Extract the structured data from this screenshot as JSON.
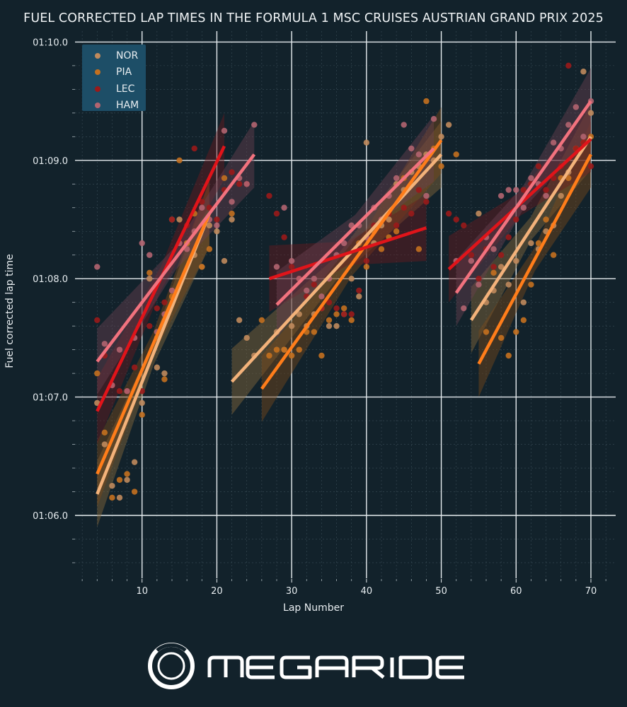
{
  "chart_data": {
    "type": "scatter",
    "title": "FUEL CORRECTED LAP TIMES IN THE FORMULA 1 MSC CRUISES AUSTRIAN GRAND PRIX 2025",
    "xlabel": "Lap Number",
    "ylabel": "Fuel corrected lap time",
    "xlim": [
      1.5,
      73
    ],
    "ylim_seconds": [
      65.5,
      70.1
    ],
    "x_ticks": [
      10,
      20,
      30,
      40,
      50,
      60,
      70
    ],
    "x_tick_labels": [
      "10",
      "20",
      "30",
      "40",
      "50",
      "60",
      "70"
    ],
    "y_ticks_seconds": [
      66,
      67,
      68,
      69,
      70
    ],
    "y_tick_labels": [
      "01:06.0",
      "01:07.0",
      "01:08.0",
      "01:09.0",
      "01:10.0"
    ],
    "grid": true,
    "legend_position": "top-left",
    "series": [
      {
        "name": "NOR",
        "point_color": "#c08a5c",
        "line_color": "#f3b27a",
        "band_color": "#8a6a3c",
        "points": [
          [
            4,
            66.95
          ],
          [
            5,
            66.6
          ],
          [
            6,
            66.25
          ],
          [
            7,
            66.15
          ],
          [
            8,
            66.3
          ],
          [
            9,
            66.45
          ],
          [
            10,
            66.95
          ],
          [
            11,
            68.0
          ],
          [
            12,
            67.25
          ],
          [
            13,
            67.2
          ],
          [
            14,
            68.5
          ],
          [
            15,
            68.5
          ],
          [
            16,
            68.3
          ],
          [
            17,
            68.2
          ],
          [
            18,
            68.1
          ],
          [
            19,
            68.45
          ],
          [
            20,
            68.4
          ],
          [
            21,
            68.15
          ],
          [
            22,
            68.5
          ],
          [
            23,
            67.65
          ],
          [
            24,
            67.5
          ],
          [
            25,
            67.35
          ],
          [
            28,
            67.55
          ],
          [
            29,
            67.4
          ],
          [
            30,
            67.6
          ],
          [
            31,
            67.7
          ],
          [
            32,
            67.6
          ],
          [
            33,
            67.7
          ],
          [
            34,
            67.75
          ],
          [
            35,
            67.6
          ],
          [
            36,
            67.6
          ],
          [
            37,
            67.7
          ],
          [
            38,
            68.0
          ],
          [
            39,
            67.85
          ],
          [
            40,
            69.15
          ],
          [
            41,
            68.3
          ],
          [
            42,
            68.45
          ],
          [
            43,
            68.5
          ],
          [
            44,
            68.8
          ],
          [
            45,
            68.75
          ],
          [
            46,
            68.9
          ],
          [
            47,
            68.95
          ],
          [
            48,
            69.05
          ],
          [
            49,
            69.0
          ],
          [
            50,
            69.2
          ],
          [
            51,
            69.3
          ],
          [
            55,
            68.55
          ],
          [
            56,
            67.8
          ],
          [
            57,
            67.9
          ],
          [
            58,
            68.1
          ],
          [
            59,
            67.95
          ],
          [
            60,
            68.15
          ],
          [
            61,
            67.8
          ],
          [
            62,
            68.3
          ],
          [
            63,
            68.25
          ],
          [
            64,
            68.4
          ],
          [
            65,
            68.45
          ],
          [
            66,
            68.7
          ],
          [
            67,
            68.9
          ],
          [
            68,
            69.1
          ],
          [
            69,
            69.75
          ],
          [
            70,
            69.4
          ]
        ],
        "fits": [
          {
            "stint": 1,
            "x": [
              4,
              19
            ],
            "y": [
              66.18,
              68.55
            ]
          },
          {
            "stint": 2,
            "x": [
              22,
              50
            ],
            "y": [
              67.13,
              69.05
            ]
          },
          {
            "stint": 3,
            "x": [
              54,
              70
            ],
            "y": [
              67.65,
              69.2
            ]
          }
        ]
      },
      {
        "name": "PIA",
        "point_color": "#c4701f",
        "line_color": "#ff7d1a",
        "band_color": "#7a4a1a",
        "points": [
          [
            4,
            67.2
          ],
          [
            5,
            66.7
          ],
          [
            6,
            66.15
          ],
          [
            7,
            66.3
          ],
          [
            8,
            66.35
          ],
          [
            9,
            66.2
          ],
          [
            10,
            66.85
          ],
          [
            11,
            68.05
          ],
          [
            12,
            67.5
          ],
          [
            13,
            67.15
          ],
          [
            14,
            67.85
          ],
          [
            15,
            69.0
          ],
          [
            16,
            68.3
          ],
          [
            17,
            68.55
          ],
          [
            18,
            68.1
          ],
          [
            19,
            68.25
          ],
          [
            21,
            68.85
          ],
          [
            22,
            68.55
          ],
          [
            26,
            67.65
          ],
          [
            27,
            67.35
          ],
          [
            28,
            67.4
          ],
          [
            29,
            67.4
          ],
          [
            30,
            67.35
          ],
          [
            31,
            67.4
          ],
          [
            32,
            67.55
          ],
          [
            33,
            67.55
          ],
          [
            34,
            67.35
          ],
          [
            35,
            67.65
          ],
          [
            36,
            67.7
          ],
          [
            37,
            67.75
          ],
          [
            38,
            67.65
          ],
          [
            39,
            68.3
          ],
          [
            40,
            68.1
          ],
          [
            41,
            68.4
          ],
          [
            42,
            68.25
          ],
          [
            43,
            68.35
          ],
          [
            44,
            68.4
          ],
          [
            45,
            68.85
          ],
          [
            46,
            68.8
          ],
          [
            47,
            68.25
          ],
          [
            48,
            69.5
          ],
          [
            49,
            69.1
          ],
          [
            50,
            68.95
          ],
          [
            52,
            69.05
          ],
          [
            56,
            67.55
          ],
          [
            57,
            68.05
          ],
          [
            58,
            67.5
          ],
          [
            59,
            67.35
          ],
          [
            60,
            67.55
          ],
          [
            61,
            67.65
          ],
          [
            62,
            67.95
          ],
          [
            63,
            68.3
          ],
          [
            64,
            68.5
          ],
          [
            65,
            68.2
          ],
          [
            66,
            68.85
          ],
          [
            67,
            68.85
          ],
          [
            68,
            69.1
          ],
          [
            69,
            69.15
          ],
          [
            70,
            69.2
          ]
        ],
        "fits": [
          {
            "stint": 1,
            "x": [
              4,
              19
            ],
            "y": [
              66.35,
              68.55
            ]
          },
          {
            "stint": 2,
            "x": [
              26,
              50
            ],
            "y": [
              67.07,
              69.17
            ]
          },
          {
            "stint": 3,
            "x": [
              55,
              70
            ],
            "y": [
              67.28,
              69.05
            ]
          }
        ]
      },
      {
        "name": "LEC",
        "point_color": "#9a1a1a",
        "line_color": "#e0141a",
        "band_color": "#6a1a20",
        "points": [
          [
            4,
            67.65
          ],
          [
            5,
            67.35
          ],
          [
            6,
            67.1
          ],
          [
            7,
            67.05
          ],
          [
            8,
            67.05
          ],
          [
            9,
            67.25
          ],
          [
            10,
            67.05
          ],
          [
            11,
            67.6
          ],
          [
            12,
            67.75
          ],
          [
            13,
            67.8
          ],
          [
            14,
            68.5
          ],
          [
            15,
            68.3
          ],
          [
            16,
            68.45
          ],
          [
            17,
            69.1
          ],
          [
            18,
            68.65
          ],
          [
            19,
            68.6
          ],
          [
            20,
            68.5
          ],
          [
            21,
            68.75
          ],
          [
            22,
            68.9
          ],
          [
            23,
            68.8
          ],
          [
            24,
            68.8
          ],
          [
            27,
            68.7
          ],
          [
            28,
            68.55
          ],
          [
            29,
            68.35
          ],
          [
            30,
            68.1
          ],
          [
            31,
            68.0
          ],
          [
            32,
            67.85
          ],
          [
            33,
            67.95
          ],
          [
            34,
            67.75
          ],
          [
            35,
            67.8
          ],
          [
            36,
            67.75
          ],
          [
            37,
            67.7
          ],
          [
            38,
            67.7
          ],
          [
            39,
            67.9
          ],
          [
            40,
            68.15
          ],
          [
            41,
            68.45
          ],
          [
            42,
            68.5
          ],
          [
            43,
            68.55
          ],
          [
            44,
            68.45
          ],
          [
            45,
            68.6
          ],
          [
            46,
            68.55
          ],
          [
            47,
            68.75
          ],
          [
            48,
            68.65
          ],
          [
            51,
            68.55
          ],
          [
            52,
            68.5
          ],
          [
            53,
            68.45
          ],
          [
            54,
            68.2
          ],
          [
            55,
            68.0
          ],
          [
            56,
            68.25
          ],
          [
            57,
            68.1
          ],
          [
            58,
            68.2
          ],
          [
            59,
            68.35
          ],
          [
            60,
            68.5
          ],
          [
            61,
            68.75
          ],
          [
            62,
            68.8
          ],
          [
            63,
            68.95
          ],
          [
            64,
            68.75
          ],
          [
            65,
            68.85
          ],
          [
            66,
            68.95
          ],
          [
            67,
            69.8
          ],
          [
            68,
            69.1
          ],
          [
            69,
            69.15
          ],
          [
            70,
            68.95
          ]
        ],
        "fits": [
          {
            "stint": 1,
            "x": [
              4,
              21
            ],
            "y": [
              66.88,
              69.12
            ]
          },
          {
            "stint": 2,
            "x": [
              27,
              48
            ],
            "y": [
              68.0,
              68.43
            ]
          },
          {
            "stint": 3,
            "x": [
              51,
              70
            ],
            "y": [
              68.08,
              69.18
            ]
          }
        ]
      },
      {
        "name": "HAM",
        "point_color": "#b26470",
        "line_color": "#f2727e",
        "band_color": "#6a4050",
        "points": [
          [
            4,
            68.1
          ],
          [
            5,
            67.45
          ],
          [
            6,
            67.1
          ],
          [
            7,
            67.4
          ],
          [
            8,
            67.05
          ],
          [
            9,
            67.5
          ],
          [
            10,
            68.3
          ],
          [
            11,
            68.2
          ],
          [
            12,
            67.55
          ],
          [
            13,
            67.7
          ],
          [
            14,
            67.9
          ],
          [
            15,
            68.3
          ],
          [
            16,
            68.25
          ],
          [
            17,
            68.4
          ],
          [
            18,
            68.6
          ],
          [
            19,
            68.5
          ],
          [
            20,
            68.45
          ],
          [
            21,
            69.25
          ],
          [
            22,
            68.65
          ],
          [
            23,
            68.85
          ],
          [
            24,
            68.8
          ],
          [
            25,
            69.3
          ],
          [
            28,
            68.1
          ],
          [
            29,
            68.6
          ],
          [
            30,
            68.15
          ],
          [
            31,
            68.0
          ],
          [
            32,
            67.9
          ],
          [
            33,
            68.0
          ],
          [
            34,
            67.85
          ],
          [
            35,
            68.0
          ],
          [
            36,
            68.2
          ],
          [
            37,
            68.3
          ],
          [
            38,
            68.45
          ],
          [
            39,
            68.45
          ],
          [
            40,
            68.35
          ],
          [
            41,
            68.6
          ],
          [
            42,
            68.5
          ],
          [
            43,
            68.7
          ],
          [
            44,
            68.85
          ],
          [
            45,
            69.3
          ],
          [
            46,
            69.1
          ],
          [
            47,
            69.05
          ],
          [
            48,
            68.7
          ],
          [
            49,
            69.35
          ],
          [
            52,
            68.15
          ],
          [
            53,
            67.75
          ],
          [
            54,
            68.15
          ],
          [
            55,
            67.95
          ],
          [
            56,
            68.35
          ],
          [
            57,
            68.25
          ],
          [
            58,
            68.7
          ],
          [
            59,
            68.75
          ],
          [
            60,
            68.75
          ],
          [
            61,
            68.6
          ],
          [
            62,
            68.85
          ],
          [
            63,
            68.8
          ],
          [
            64,
            68.7
          ],
          [
            65,
            69.15
          ],
          [
            66,
            69.1
          ],
          [
            67,
            69.3
          ],
          [
            68,
            69.45
          ],
          [
            69,
            69.2
          ],
          [
            70,
            69.5
          ]
        ],
        "fits": [
          {
            "stint": 1,
            "x": [
              4,
              25
            ],
            "y": [
              67.3,
              69.05
            ]
          },
          {
            "stint": 2,
            "x": [
              28,
              49
            ],
            "y": [
              67.78,
              69.1
            ]
          },
          {
            "stint": 3,
            "x": [
              52,
              70
            ],
            "y": [
              67.88,
              69.5
            ]
          }
        ]
      }
    ]
  },
  "branding": {
    "logo_text": "MEGARIDE"
  }
}
